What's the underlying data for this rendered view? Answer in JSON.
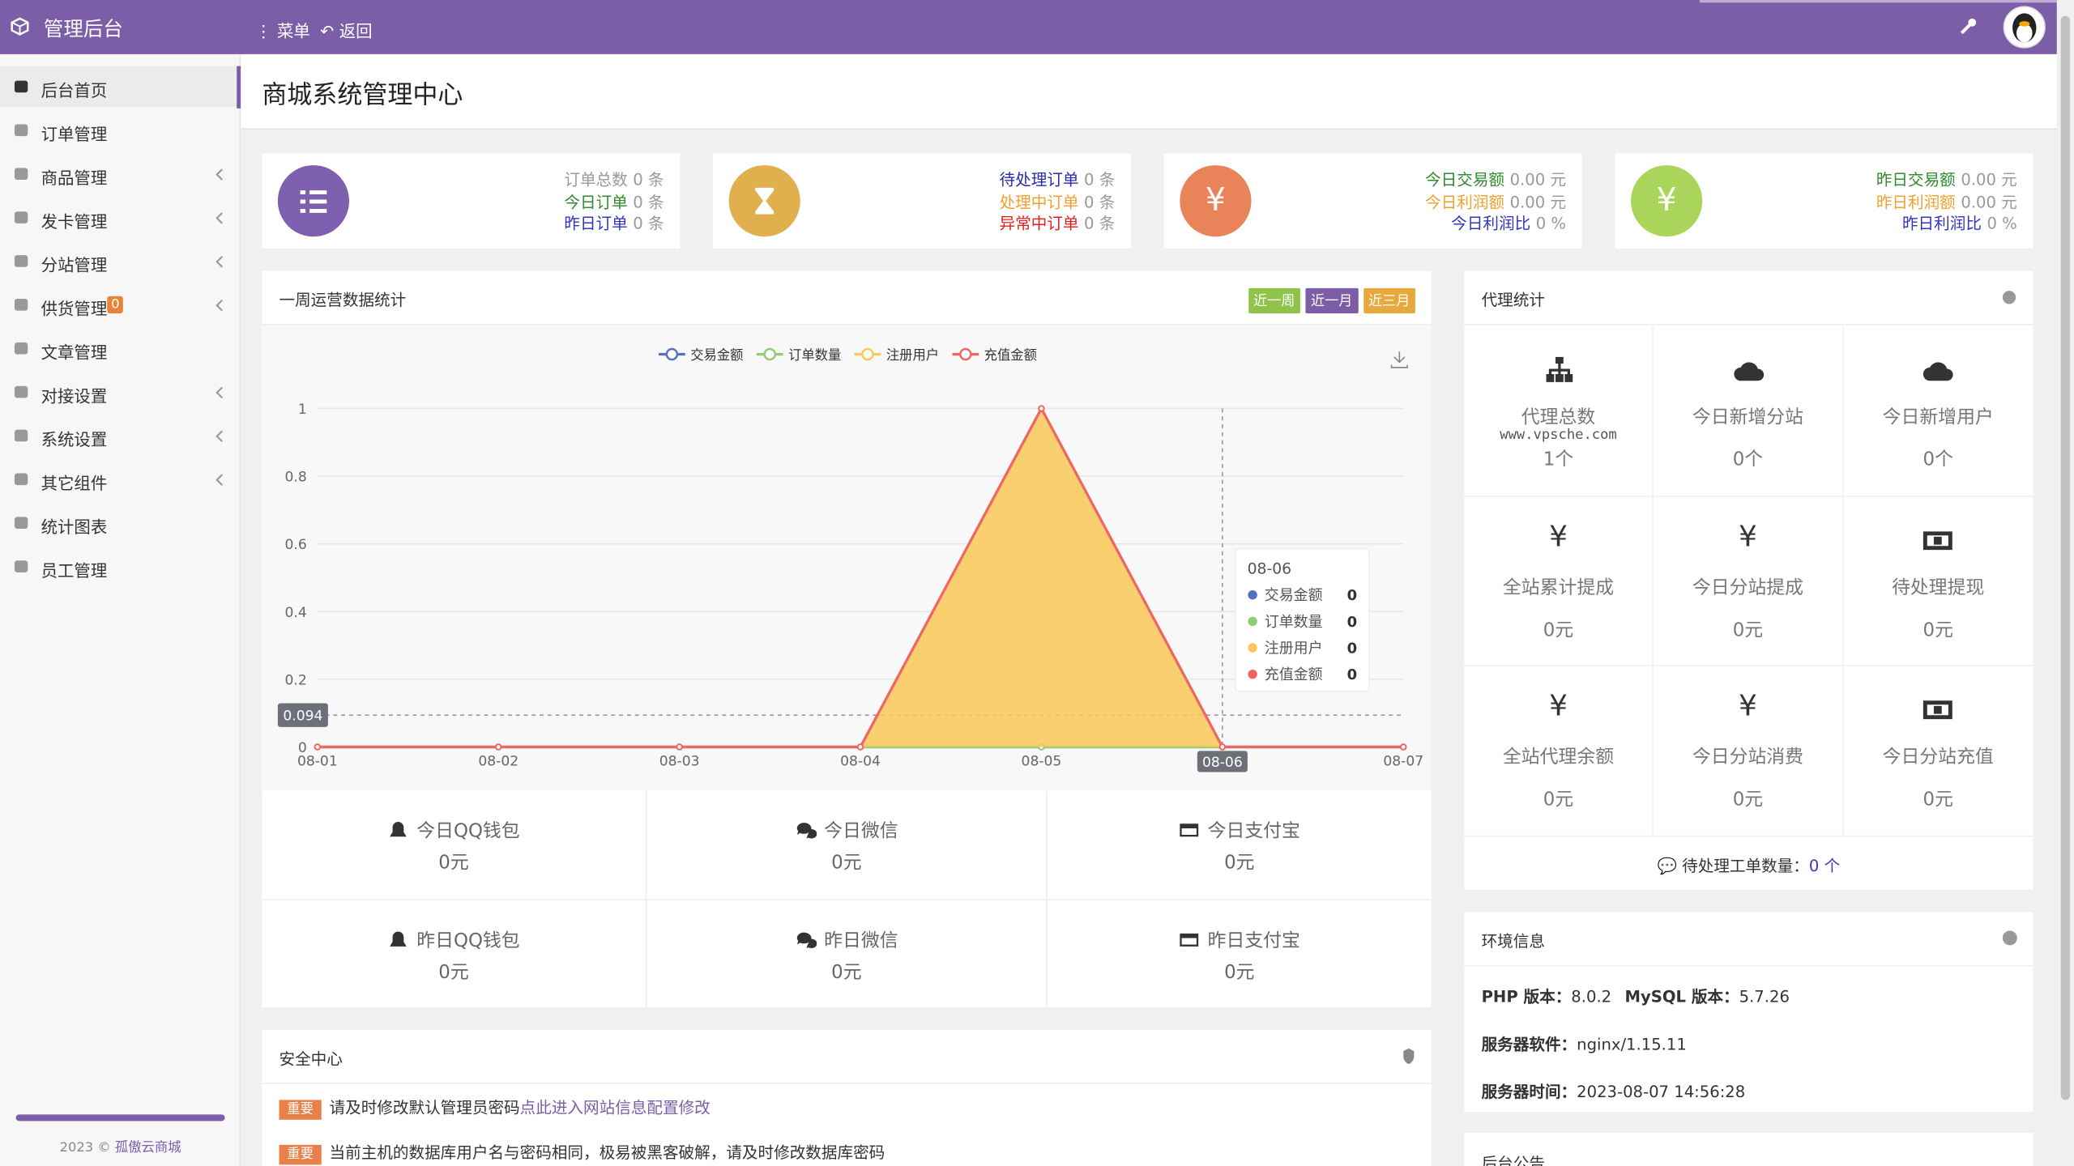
{
  "header": {
    "brand": "管理后台",
    "menu": "菜单",
    "back": "返回"
  },
  "sidebar": {
    "items": [
      {
        "label": "后台首页",
        "active": true
      },
      {
        "label": "订单管理"
      },
      {
        "label": "商品管理",
        "submenu": true
      },
      {
        "label": "发卡管理",
        "submenu": true
      },
      {
        "label": "分站管理",
        "submenu": true
      },
      {
        "label": "供货管理",
        "submenu": true,
        "badge": "0"
      },
      {
        "label": "文章管理"
      },
      {
        "label": "对接设置",
        "submenu": true
      },
      {
        "label": "系统设置",
        "submenu": true
      },
      {
        "label": "其它组件",
        "submenu": true
      },
      {
        "label": "统计图表"
      },
      {
        "label": "员工管理"
      }
    ],
    "footer": "2023 © ",
    "footer_link": "孤傲云商城"
  },
  "page_title": "商城系统管理中心",
  "stat_cards": [
    {
      "color": "#7e5fb0",
      "icon": "list",
      "lines": [
        {
          "label": "订单总数",
          "value": "0 条",
          "color": "#999999"
        },
        {
          "label": "今日订单",
          "value": "0 条",
          "color": "#2e8b2e"
        },
        {
          "label": "昨日订单",
          "value": "0 条",
          "color": "#3333bb"
        }
      ]
    },
    {
      "color": "#e0b04f",
      "icon": "hourglass",
      "lines": [
        {
          "label": "待处理订单",
          "value": "0 条",
          "color": "#2a2ab0"
        },
        {
          "label": "处理中订单",
          "value": "0 条",
          "color": "#f0a030"
        },
        {
          "label": "异常中订单",
          "value": "0 条",
          "color": "#e02020"
        }
      ]
    },
    {
      "color": "#e8835a",
      "icon_text": "¥",
      "lines": [
        {
          "label": "今日交易额",
          "value": "0.00 元",
          "color": "#2e8b2e"
        },
        {
          "label": "今日利润额",
          "value": "0.00 元",
          "color": "#f0a030"
        },
        {
          "label": "今日利润比",
          "value": "0 %",
          "color": "#3333bb"
        }
      ]
    },
    {
      "color": "#a9d65a",
      "icon_text": "¥",
      "lines": [
        {
          "label": "昨日交易额",
          "value": "0.00 元",
          "color": "#2e8b2e"
        },
        {
          "label": "昨日利润额",
          "value": "0.00 元",
          "color": "#f0a030"
        },
        {
          "label": "昨日利润比",
          "value": "0 %",
          "color": "#3333bb"
        }
      ]
    }
  ],
  "chart_panel": {
    "title": "一周运营数据统计",
    "buttons": [
      {
        "label": "近一周",
        "color": "#8fc34a"
      },
      {
        "label": "近一月",
        "color": "#7b5ea7"
      },
      {
        "label": "近三月",
        "color": "#e8a93c"
      }
    ]
  },
  "chart_data": {
    "type": "line",
    "categories": [
      "08-01",
      "08-02",
      "08-03",
      "08-04",
      "08-05",
      "08-06",
      "08-07"
    ],
    "series": [
      {
        "name": "交易金额",
        "color": "#5470c6",
        "values": [
          0,
          0,
          0,
          0,
          0,
          0,
          0
        ]
      },
      {
        "name": "订单数量",
        "color": "#91cc75",
        "values": [
          0,
          0,
          0,
          0,
          0,
          0,
          0
        ]
      },
      {
        "name": "注册用户",
        "color": "#fac858",
        "area": true,
        "values": [
          0,
          0,
          0,
          0,
          1,
          0,
          0
        ]
      },
      {
        "name": "充值金额",
        "color": "#ee6666",
        "values": [
          0,
          0,
          0,
          0,
          1,
          0,
          0
        ]
      }
    ],
    "ylim": [
      0,
      1
    ],
    "yticks": [
      0,
      0.2,
      0.4,
      0.6,
      0.8,
      1
    ],
    "grid": true,
    "tooltip_index": 5,
    "pointer_value": 0.094
  },
  "payments": [
    {
      "label": "今日QQ钱包",
      "value": "0元",
      "icon": "qq"
    },
    {
      "label": "今日微信",
      "value": "0元",
      "icon": "wechat"
    },
    {
      "label": "今日支付宝",
      "value": "0元",
      "icon": "card"
    },
    {
      "label": "昨日QQ钱包",
      "value": "0元",
      "icon": "qq"
    },
    {
      "label": "昨日微信",
      "value": "0元",
      "icon": "wechat"
    },
    {
      "label": "昨日支付宝",
      "value": "0元",
      "icon": "card"
    }
  ],
  "security": {
    "title": "安全中心",
    "items": [
      {
        "tag": "重要",
        "text": "请及时修改默认管理员密码",
        "link": "点此进入网站信息配置修改"
      },
      {
        "tag": "重要",
        "text": "当前主机的数据库用户名与密码相同，极易被黑客破解，请及时修改数据库密码"
      }
    ]
  },
  "agent": {
    "title": "代理统计",
    "watermark": "www.vpsche.com",
    "cells": [
      {
        "label": "代理总数",
        "value": "1个",
        "icon": "sitemap"
      },
      {
        "label": "今日新增分站",
        "value": "0个",
        "icon": "cloud"
      },
      {
        "label": "今日新增用户",
        "value": "0个",
        "icon": "cloud"
      },
      {
        "label": "全站累计提成",
        "value": "0元",
        "icon_text": "¥"
      },
      {
        "label": "今日分站提成",
        "value": "0元",
        "icon_text": "¥"
      },
      {
        "label": "待处理提现",
        "value": "0元",
        "icon": "money"
      },
      {
        "label": "全站代理余额",
        "value": "0元",
        "icon_text": "¥"
      },
      {
        "label": "今日分站消费",
        "value": "0元",
        "icon_text": "¥"
      },
      {
        "label": "今日分站充值",
        "value": "0元",
        "icon": "money"
      }
    ],
    "footer_label": "待处理工单数量：",
    "footer_value": "0 个"
  },
  "env": {
    "title": "环境信息",
    "rows": [
      [
        {
          "key": "PHP 版本：",
          "value": "8.0.2"
        },
        {
          "key": "MySQL 版本：",
          "value": "5.7.26"
        }
      ],
      [
        {
          "key": "服务器软件：",
          "value": "nginx/1.15.11"
        }
      ],
      [
        {
          "key": "服务器时间：",
          "value": "2023-08-07 14:56:28"
        }
      ]
    ]
  },
  "notice": {
    "title": "后台公告"
  }
}
